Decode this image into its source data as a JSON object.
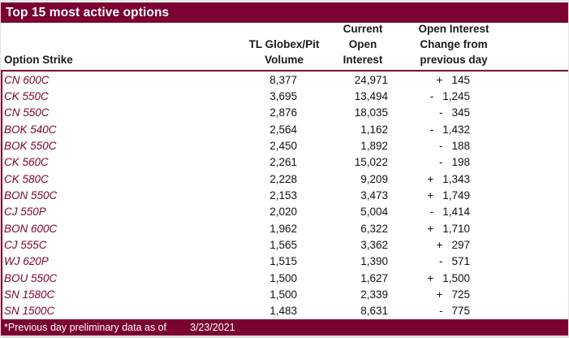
{
  "title": "Top 15 most active options",
  "columns": {
    "strike": "Option Strike",
    "volume": [
      "TL Globex/Pit",
      "Volume"
    ],
    "open_interest": [
      "Current",
      "Open",
      "Interest"
    ],
    "change": [
      "Open Interest",
      "Change from",
      "previous day"
    ]
  },
  "rows": [
    {
      "strike": "CN 600C",
      "volume": "8,377",
      "open_interest": "24,971",
      "change_sign": "+",
      "change_value": "145"
    },
    {
      "strike": "CK 550C",
      "volume": "3,695",
      "open_interest": "13,494",
      "change_sign": "-",
      "change_value": "1,245"
    },
    {
      "strike": "CN 550C",
      "volume": "2,876",
      "open_interest": "18,035",
      "change_sign": "-",
      "change_value": "345"
    },
    {
      "strike": "BOK 540C",
      "volume": "2,564",
      "open_interest": "1,162",
      "change_sign": "-",
      "change_value": "1,432"
    },
    {
      "strike": "BOK 550C",
      "volume": "2,450",
      "open_interest": "1,892",
      "change_sign": "-",
      "change_value": "188"
    },
    {
      "strike": "CK 560C",
      "volume": "2,261",
      "open_interest": "15,022",
      "change_sign": "-",
      "change_value": "198"
    },
    {
      "strike": "CK 580C",
      "volume": "2,228",
      "open_interest": "9,209",
      "change_sign": "+",
      "change_value": "1,343"
    },
    {
      "strike": "BON 550C",
      "volume": "2,153",
      "open_interest": "3,473",
      "change_sign": "+",
      "change_value": "1,749"
    },
    {
      "strike": "CJ 550P",
      "volume": "2,020",
      "open_interest": "5,004",
      "change_sign": "-",
      "change_value": "1,414"
    },
    {
      "strike": "BON 600C",
      "volume": "1,962",
      "open_interest": "6,322",
      "change_sign": "+",
      "change_value": "1,710"
    },
    {
      "strike": "CJ 555C",
      "volume": "1,565",
      "open_interest": "3,362",
      "change_sign": "+",
      "change_value": "297"
    },
    {
      "strike": "WJ 620P",
      "volume": "1,515",
      "open_interest": "1,390",
      "change_sign": "-",
      "change_value": "571"
    },
    {
      "strike": "BOU 550C",
      "volume": "1,500",
      "open_interest": "1,627",
      "change_sign": "+",
      "change_value": "1,500"
    },
    {
      "strike": "SN 1580C",
      "volume": "1,500",
      "open_interest": "2,339",
      "change_sign": "+",
      "change_value": "725"
    },
    {
      "strike": "SN 1500C",
      "volume": "1,483",
      "open_interest": "8,631",
      "change_sign": "-",
      "change_value": "775"
    }
  ],
  "footer": {
    "note": "*Previous day preliminary data as of",
    "date": "3/23/2021"
  },
  "colors": {
    "maroon": "#7A0132",
    "strike_text": "#7A0132",
    "header_text": "#1a1a1a"
  }
}
